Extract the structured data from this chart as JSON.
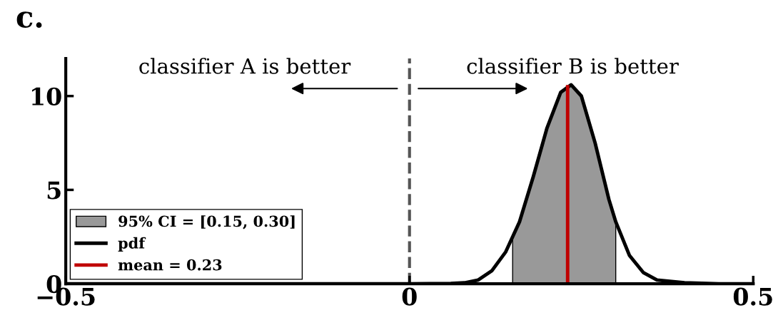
{
  "chart_data": {
    "type": "line",
    "title": "c.",
    "annotations": [
      "classifier A is better",
      "classifier B is better"
    ],
    "series": [
      {
        "name": "95% CI = [0.15, 0.30]",
        "type": "area",
        "color": "#999999",
        "x": [
          0.15,
          0.16,
          0.18,
          0.2,
          0.22,
          0.235,
          0.25,
          0.27,
          0.29,
          0.3
        ],
        "values": [
          2.6,
          3.3,
          5.7,
          8.3,
          10.2,
          10.6,
          10.0,
          7.5,
          4.5,
          3.3
        ]
      },
      {
        "name": "pdf",
        "color": "#000000",
        "x": [
          -0.5,
          0.0,
          0.06,
          0.08,
          0.1,
          0.12,
          0.14,
          0.16,
          0.18,
          0.2,
          0.22,
          0.235,
          0.25,
          0.27,
          0.29,
          0.3,
          0.32,
          0.34,
          0.36,
          0.4,
          0.45,
          0.5
        ],
        "values": [
          0,
          0,
          0.02,
          0.05,
          0.2,
          0.7,
          1.7,
          3.3,
          5.7,
          8.3,
          10.2,
          10.6,
          10.0,
          7.5,
          4.5,
          3.3,
          1.5,
          0.6,
          0.2,
          0.05,
          0,
          0
        ]
      },
      {
        "name": "mean = 0.23",
        "color": "#c00000",
        "x": [
          0.23,
          0.23
        ],
        "values": [
          0,
          10.5
        ]
      }
    ],
    "ref_lines": [
      {
        "axis": "x",
        "value": 0,
        "color": "#555555",
        "line_style": "dashed"
      }
    ],
    "xlim": [
      -0.5,
      0.5
    ],
    "xticks": [
      {
        "value": -0.5,
        "label": "−0.5"
      },
      0,
      0.5
    ],
    "ylim": [
      0,
      12
    ],
    "yticks": [
      0,
      5,
      10
    ],
    "grid": false,
    "legend": "bottom left"
  }
}
